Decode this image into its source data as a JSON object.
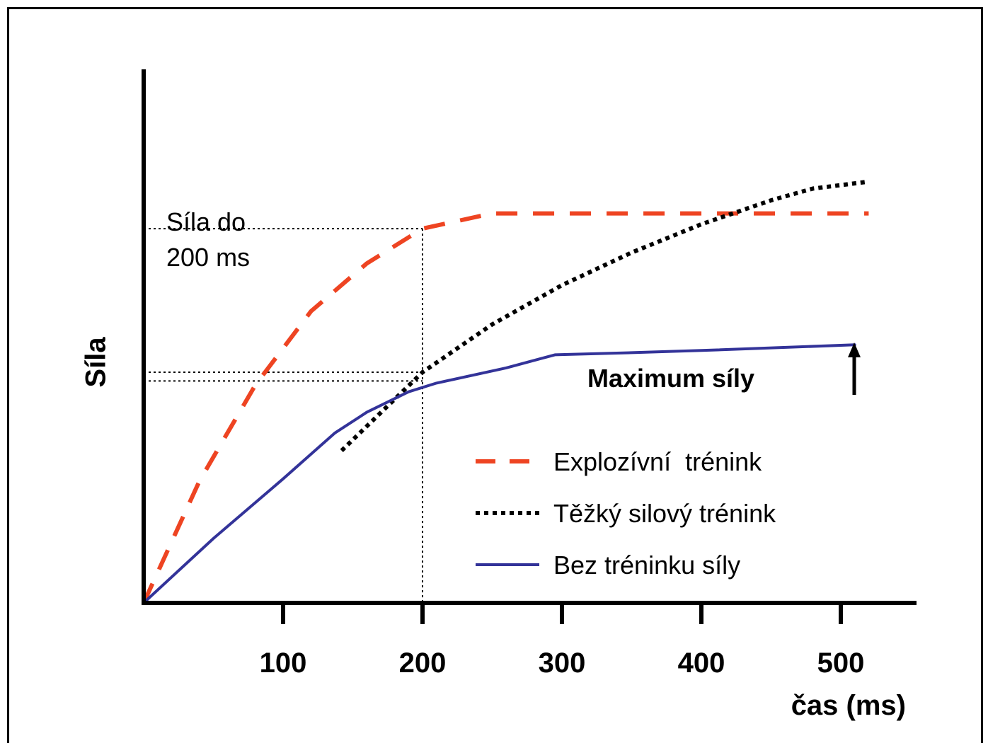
{
  "chart_data": {
    "type": "line",
    "xlabel": "čas (ms)",
    "ylabel": "Síla",
    "x_ticks": [
      100,
      200,
      300,
      400,
      500
    ],
    "xlim": [
      0,
      560
    ],
    "ylim": [
      0,
      100
    ],
    "grid": false,
    "legend_position": "bottom-right",
    "series": [
      {
        "name": "Explozívní  trénink",
        "style": "dashed",
        "color": "#EE4422",
        "points": [
          [
            0,
            0
          ],
          [
            40,
            28
          ],
          [
            80,
            50
          ],
          [
            120,
            67
          ],
          [
            160,
            78
          ],
          [
            200,
            86
          ],
          [
            250,
            89.5
          ],
          [
            300,
            89.5
          ],
          [
            400,
            89.5
          ],
          [
            520,
            89.5
          ]
        ]
      },
      {
        "name": "Těžký silový trénink",
        "style": "dotted",
        "color": "#000000",
        "points": [
          [
            142,
            35
          ],
          [
            200,
            53
          ],
          [
            250,
            64
          ],
          [
            300,
            73
          ],
          [
            350,
            80.5
          ],
          [
            400,
            87
          ],
          [
            450,
            92.5
          ],
          [
            480,
            95.2
          ],
          [
            520,
            96.8
          ]
        ]
      },
      {
        "name": "Bez tréninku síly",
        "style": "solid",
        "color": "#333399",
        "points": [
          [
            0,
            0
          ],
          [
            50,
            14.8
          ],
          [
            100,
            28.5
          ],
          [
            137,
            39
          ],
          [
            160,
            43.8
          ],
          [
            190,
            48.5
          ],
          [
            210,
            50.5
          ],
          [
            260,
            54
          ],
          [
            295,
            57
          ],
          [
            350,
            57.5
          ],
          [
            400,
            58
          ],
          [
            510,
            59.3
          ]
        ]
      }
    ],
    "reference_lines": [
      {
        "type": "horizontal",
        "y": 86
      },
      {
        "type": "horizontal",
        "y": 53
      },
      {
        "type": "horizontal",
        "y": 51
      },
      {
        "type": "vertical",
        "x": 200
      }
    ],
    "annotations": [
      {
        "text_lines": [
          "Síla do",
          "200 ms"
        ]
      },
      {
        "text": "Maximum síly",
        "arrow": "up",
        "x": 510
      }
    ]
  }
}
